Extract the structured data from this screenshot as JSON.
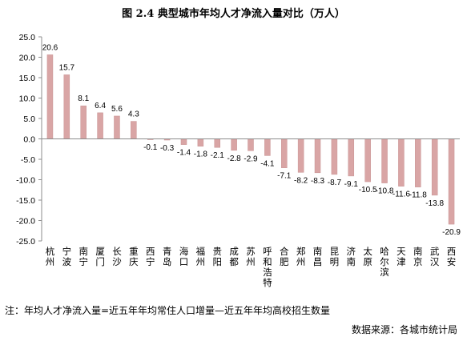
{
  "title": "图 2.4   典型城市年均人才净流入量对比（万人）",
  "note": "注：年均人才净流入量=近五年年均常住人口增量—近五年年均高校招生数量",
  "source": "数据来源：各城市统计局",
  "colors": {
    "bar": "#d9a5a5",
    "bar_stroke": "#c89494",
    "axis": "#8c8c8c"
  },
  "chart_data": {
    "type": "bar",
    "title": "典型城市年均人才净流入量对比（万人）",
    "xlabel": "",
    "ylabel": "",
    "ylim": [
      -25,
      25
    ],
    "yticks": [
      "25.0",
      "20.0",
      "15.0",
      "10.0",
      "5.0",
      "0.0",
      "-5.0",
      "-10.0",
      "-15.0",
      "-20.0",
      "-25.0"
    ],
    "grid": false,
    "legend": "none",
    "categories": [
      "杭州",
      "宁波",
      "南宁",
      "厦门",
      "长沙",
      "重庆",
      "西宁",
      "青岛",
      "海口",
      "福州",
      "贵阳",
      "成都",
      "苏州",
      "呼和浩特",
      "合肥",
      "郑州",
      "南昌",
      "昆明",
      "济南",
      "太原",
      "哈尔滨",
      "天津",
      "南京",
      "武汉",
      "西安"
    ],
    "values": [
      20.6,
      15.7,
      8.1,
      6.4,
      5.6,
      4.3,
      -0.1,
      -0.3,
      -1.4,
      -1.8,
      -2.1,
      -2.8,
      -2.9,
      -4.1,
      -7.1,
      -8.2,
      -8.3,
      -8.7,
      -9.1,
      -10.5,
      -10.8,
      -11.6,
      -11.8,
      -13.8,
      -20.9
    ],
    "labels": [
      "20.6",
      "15.7",
      "8.1",
      "6.4",
      "5.6",
      "4.3",
      "-0.1",
      "-0.3",
      "-1.4",
      "-1.8",
      "-2.1",
      "-2.8",
      "-2.9",
      "-4.1",
      "-7.1",
      "-8.2",
      "-8.3",
      "-8.7",
      "-9.1",
      "-10.5",
      "-10.8",
      "-11.6",
      "-11.8",
      "-13.8",
      "-20.9"
    ]
  }
}
